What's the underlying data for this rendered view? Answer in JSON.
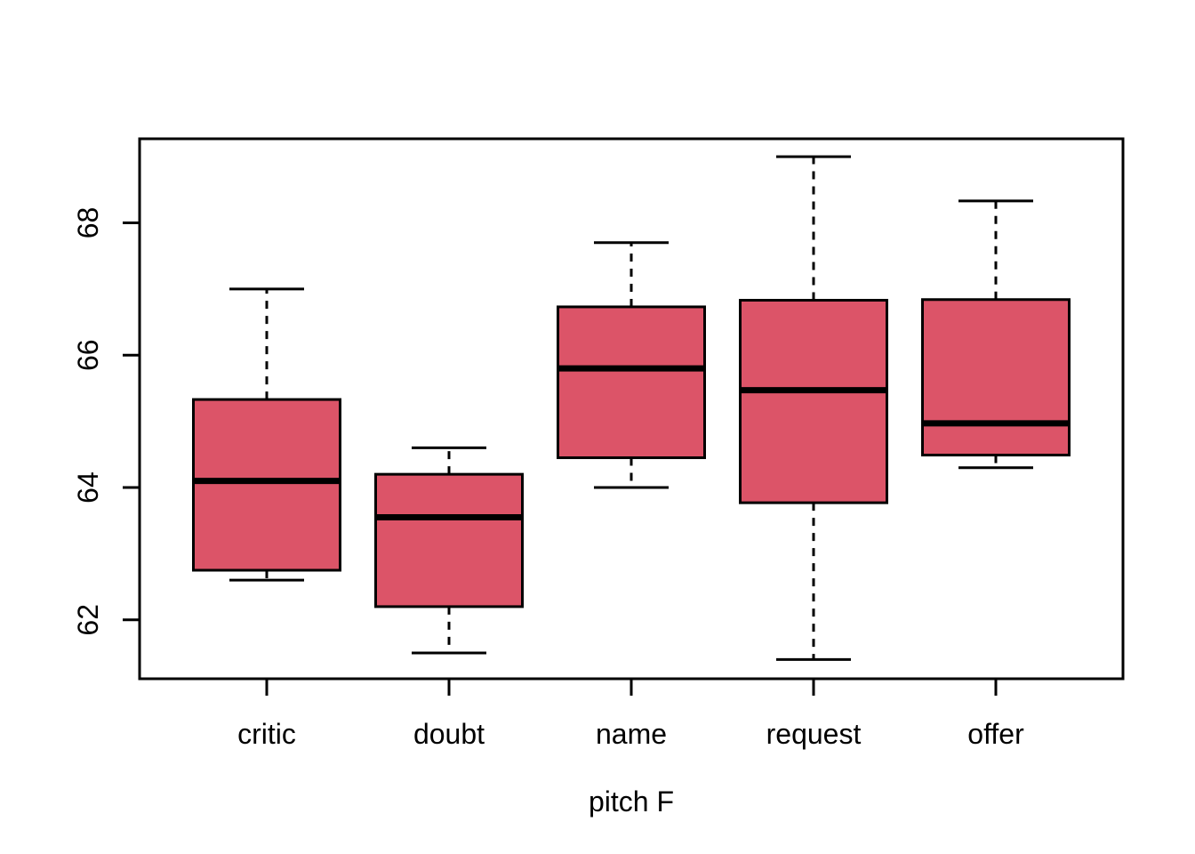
{
  "chart_data": {
    "type": "boxplot",
    "title": "",
    "xlabel": "pitch F",
    "ylabel": "",
    "categories": [
      "critic",
      "doubt",
      "name",
      "request",
      "offer"
    ],
    "series": [
      {
        "name": "critic",
        "whisker_low": 62.6,
        "q1": 62.75,
        "median": 64.1,
        "q3": 65.33,
        "whisker_high": 67.0
      },
      {
        "name": "doubt",
        "whisker_low": 61.5,
        "q1": 62.2,
        "median": 63.55,
        "q3": 64.2,
        "whisker_high": 64.6
      },
      {
        "name": "name",
        "whisker_low": 64.0,
        "q1": 64.45,
        "median": 65.8,
        "q3": 66.73,
        "whisker_high": 67.7
      },
      {
        "name": "request",
        "whisker_low": 61.4,
        "q1": 63.77,
        "median": 65.47,
        "q3": 66.83,
        "whisker_high": 69.0
      },
      {
        "name": "offer",
        "whisker_low": 64.3,
        "q1": 64.49,
        "median": 64.97,
        "q3": 66.84,
        "whisker_high": 68.33
      }
    ],
    "y_ticks": [
      62,
      64,
      66,
      68
    ],
    "ylim": [
      61.11,
      69.27
    ],
    "grid": false,
    "legend": "none",
    "colors": {
      "box_fill": "#DC5468",
      "box_border": "#000000",
      "whisker": "#000000",
      "median": "#000000",
      "axis": "#000000",
      "background": "#FFFFFF"
    }
  }
}
